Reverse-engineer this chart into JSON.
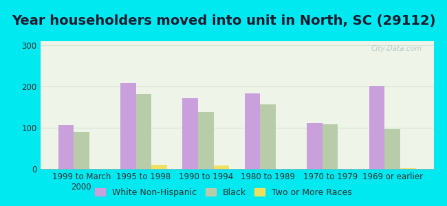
{
  "title": "Year householders moved into unit in North, SC (29112)",
  "categories": [
    "1999 to March\n2000",
    "1995 to 1998",
    "1990 to 1994",
    "1980 to 1989",
    "1970 to 1979",
    "1969 or earlier"
  ],
  "white_non_hispanic": [
    107,
    208,
    172,
    184,
    112,
    201
  ],
  "black": [
    90,
    181,
    138,
    157,
    108,
    96
  ],
  "two_or_more_races": [
    0,
    10,
    8,
    0,
    0,
    2
  ],
  "bar_color_white": "#c9a0dc",
  "bar_color_black": "#b8ccaa",
  "bar_color_two": "#f0e060",
  "background_outer": "#00e8f0",
  "background_plot": "#eef5e8",
  "ylim": [
    0,
    310
  ],
  "yticks": [
    0,
    100,
    200,
    300
  ],
  "title_fontsize": 14,
  "tick_fontsize": 8.5,
  "legend_fontsize": 9,
  "bar_width": 0.25,
  "watermark": "City-Data.com"
}
